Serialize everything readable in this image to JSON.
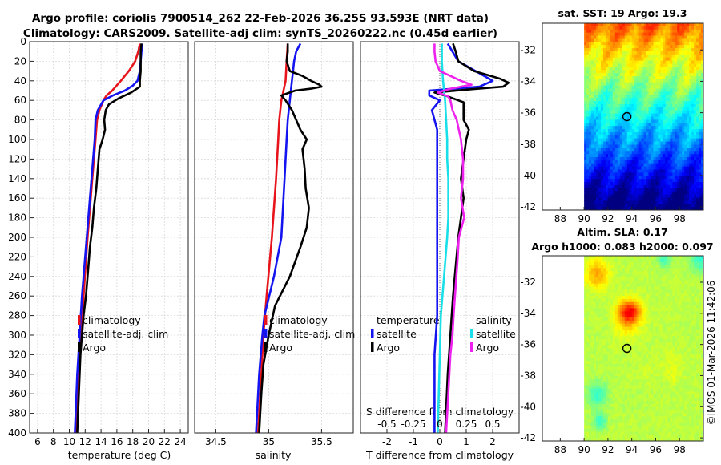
{
  "header": {
    "line1": "Argo profile: coriolis 7900514_262 22-Feb-2026 36.25S 93.593E (NRT data)",
    "line2": "Climatology: CARS2009. Satellite-adj clim: synTS_20260222.nc (0.45d earlier)"
  },
  "colors": {
    "clim": "#e8141c",
    "sat": "#1414f0",
    "argo": "#000000",
    "s_sat": "#19e0e8",
    "s_argo": "#ee22ee"
  },
  "chart_data": [
    {
      "type": "line",
      "id": "temperature",
      "xlabel": "temperature (deg C)",
      "ylabel": "",
      "xlim": [
        5,
        25
      ],
      "ylim": [
        400,
        0
      ],
      "xticks": [
        6,
        8,
        10,
        12,
        14,
        16,
        18,
        20,
        22,
        24
      ],
      "yticks": [
        0,
        20,
        40,
        60,
        80,
        100,
        120,
        140,
        160,
        180,
        200,
        220,
        240,
        260,
        280,
        300,
        320,
        340,
        360,
        380,
        400
      ],
      "legend": {
        "position": "bottom-right",
        "entries": [
          "climatology",
          "satellite-adj. clim",
          "Argo"
        ]
      },
      "series": [
        {
          "name": "climatology",
          "color": "clim",
          "depth": [
            2,
            10,
            20,
            30,
            40,
            50,
            55,
            60,
            70,
            80,
            100,
            140,
            200,
            260,
            300,
            340,
            400
          ],
          "values": [
            18.9,
            18.7,
            18.3,
            17.5,
            16.5,
            15.4,
            14.7,
            14.3,
            13.8,
            13.5,
            13.3,
            12.9,
            12.3,
            11.8,
            11.5,
            11.2,
            10.9
          ]
        },
        {
          "name": "satellite-adj. clim",
          "color": "sat",
          "depth": [
            2,
            10,
            20,
            30,
            40,
            45,
            50,
            55,
            60,
            70,
            80,
            100,
            140,
            200,
            260,
            300,
            340,
            400
          ],
          "values": [
            19.2,
            19.1,
            19.0,
            18.9,
            18.6,
            18.0,
            17.0,
            15.5,
            14.3,
            13.6,
            13.3,
            13.2,
            12.8,
            12.2,
            11.6,
            11.3,
            11.0,
            10.7
          ]
        },
        {
          "name": "Argo",
          "color": "argo",
          "depth": [
            2,
            10,
            20,
            30,
            40,
            46,
            52,
            58,
            64,
            70,
            80,
            90,
            100,
            110,
            130,
            150,
            170,
            190,
            210,
            230,
            260,
            280,
            300,
            320,
            340,
            360,
            380,
            400
          ],
          "values": [
            19.1,
            19.0,
            19.0,
            19.0,
            18.9,
            18.9,
            17.8,
            16.2,
            15.0,
            14.6,
            14.4,
            14.5,
            14.2,
            13.8,
            13.6,
            13.4,
            13.1,
            12.9,
            12.6,
            12.4,
            12.1,
            11.8,
            11.6,
            11.4,
            11.3,
            11.2,
            11.1,
            11.0
          ]
        }
      ]
    },
    {
      "type": "line",
      "id": "salinity",
      "xlabel": "salinity",
      "ylabel": "",
      "xlim": [
        34.3,
        35.8
      ],
      "ylim": [
        400,
        0
      ],
      "xticks": [
        34.5,
        35,
        35.5
      ],
      "xticklabels": [
        "34.5",
        "35",
        "35.5"
      ],
      "legend": {
        "position": "bottom-right",
        "entries": [
          "climatology",
          "satellite-adj. clim",
          "Argo"
        ]
      },
      "series": [
        {
          "name": "climatology",
          "color": "clim",
          "depth": [
            2,
            20,
            40,
            55,
            60,
            80,
            100,
            140,
            200,
            260,
            300,
            340,
            400
          ],
          "values": [
            35.18,
            35.17,
            35.16,
            35.13,
            35.12,
            35.1,
            35.09,
            35.07,
            35.03,
            34.98,
            34.95,
            34.93,
            34.9
          ]
        },
        {
          "name": "satellite-adj. clim",
          "color": "sat",
          "depth": [
            2,
            10,
            20,
            30,
            40,
            50,
            60,
            80,
            100,
            140,
            200,
            240,
            280,
            300,
            340,
            400
          ],
          "values": [
            35.3,
            35.26,
            35.24,
            35.23,
            35.22,
            35.21,
            35.2,
            35.18,
            35.17,
            35.15,
            35.12,
            35.05,
            34.96,
            34.94,
            34.91,
            34.88
          ]
        },
        {
          "name": "Argo",
          "color": "argo",
          "depth": [
            2,
            10,
            20,
            30,
            35,
            40,
            44,
            46,
            48,
            50,
            55,
            60,
            70,
            80,
            90,
            100,
            110,
            130,
            150,
            170,
            190,
            210,
            240,
            270,
            300,
            330,
            360,
            400
          ],
          "values": [
            35.18,
            35.18,
            35.17,
            35.2,
            35.32,
            35.4,
            35.48,
            35.5,
            35.4,
            35.25,
            35.12,
            35.16,
            35.22,
            35.26,
            35.3,
            35.36,
            35.32,
            35.34,
            35.35,
            35.38,
            35.36,
            35.3,
            35.2,
            35.06,
            35.0,
            34.95,
            34.93,
            34.91
          ]
        }
      ]
    },
    {
      "type": "line",
      "id": "difference",
      "xlabel": "T difference from climatology",
      "xlabel_top": "S difference from climatology",
      "xlim": [
        -3,
        3
      ],
      "ylim": [
        400,
        0
      ],
      "xticks": [
        -2,
        -1,
        0,
        1,
        2
      ],
      "xticklabels": [
        "-2",
        "-1",
        "0",
        "1",
        "2"
      ],
      "xticks_top": [
        -0.5,
        -0.25,
        0,
        0.25,
        0.5
      ],
      "xticklabels_top": [
        "-0.5",
        "-0.25",
        "0",
        "0.25",
        "0.5"
      ],
      "legend_t": {
        "title": "temperature",
        "entries": [
          "satellite",
          "Argo"
        ]
      },
      "legend_s": {
        "title": "salinity",
        "entries": [
          "satellite",
          "Argo"
        ]
      },
      "series": [
        {
          "name": "T satellite",
          "color": "sat",
          "depth": [
            2,
            20,
            40,
            46,
            50,
            55,
            60,
            70,
            80,
            90,
            100,
            120,
            140,
            160,
            180,
            200,
            240,
            280,
            320,
            360,
            400
          ],
          "values": [
            0.3,
            0.7,
            2.0,
            1.5,
            -0.4,
            -0.4,
            0.0,
            -0.3,
            -0.2,
            -0.1,
            -0.1,
            -0.1,
            -0.1,
            -0.1,
            -0.1,
            -0.1,
            -0.1,
            -0.1,
            -0.2,
            -0.2,
            -0.2
          ]
        },
        {
          "name": "T Argo",
          "color": "argo",
          "depth": [
            2,
            10,
            20,
            30,
            38,
            42,
            46,
            49,
            52,
            56,
            62,
            70,
            80,
            90,
            100,
            120,
            140,
            160,
            180,
            200,
            230,
            260,
            300,
            340,
            400
          ],
          "values": [
            0.5,
            0.6,
            0.7,
            1.3,
            2.3,
            2.6,
            2.4,
            1.0,
            -0.2,
            0.3,
            0.9,
            0.9,
            0.9,
            1.1,
            1.0,
            0.9,
            0.8,
            0.9,
            0.8,
            0.7,
            0.6,
            0.5,
            0.4,
            0.3,
            0.2
          ]
        },
        {
          "name": "S satellite",
          "color": "s_sat",
          "depth": [
            2,
            20,
            40,
            60,
            80,
            100,
            120,
            140,
            160,
            180,
            200,
            240,
            280,
            320,
            360,
            400
          ],
          "values": [
            0.02,
            0.02,
            0.03,
            0.05,
            0.06,
            0.07,
            0.07,
            0.08,
            0.08,
            0.08,
            0.07,
            0.04,
            0.01,
            0.0,
            -0.01,
            -0.02
          ]
        },
        {
          "name": "S Argo",
          "color": "s_argo",
          "depth": [
            2,
            10,
            20,
            30,
            40,
            44,
            48,
            52,
            56,
            60,
            70,
            80,
            100,
            120,
            140,
            160,
            180,
            200,
            220,
            250,
            280,
            300,
            320,
            360,
            400
          ],
          "values": [
            -0.05,
            -0.05,
            -0.04,
            0.0,
            0.2,
            0.3,
            0.1,
            -0.02,
            0.08,
            0.1,
            0.12,
            0.16,
            0.2,
            0.22,
            0.22,
            0.2,
            0.23,
            0.18,
            0.17,
            0.15,
            0.13,
            0.12,
            0.1,
            0.08,
            0.06
          ]
        }
      ]
    },
    {
      "type": "heatmap",
      "id": "sst_map",
      "title": "sat. SST: 19  Argo: 19.3",
      "xlim": [
        86.5,
        100
      ],
      "ylim": [
        -42.2,
        -30.3
      ],
      "xticks": [
        88,
        90,
        92,
        94,
        96,
        98
      ],
      "yticks": [
        -32,
        -34,
        -36,
        -38,
        -40,
        -42
      ],
      "data_xlim": [
        90,
        100
      ],
      "marker": {
        "lon": 93.593,
        "lat": -36.25
      }
    },
    {
      "type": "heatmap",
      "id": "sla_map",
      "title": "Altim. SLA: 0.17",
      "subtitle": "Argo h1000: 0.083  h2000: 0.097",
      "xlim": [
        86.5,
        100
      ],
      "ylim": [
        -42.2,
        -30.3
      ],
      "xticks": [
        88,
        90,
        92,
        94,
        96,
        98
      ],
      "yticks": [
        -32,
        -34,
        -36,
        -38,
        -40,
        -42
      ],
      "data_xlim": [
        90,
        100
      ],
      "marker": {
        "lon": 93.593,
        "lat": -36.25
      }
    }
  ],
  "credit": "©IMOS 01-Mar-2026 11:42:06"
}
